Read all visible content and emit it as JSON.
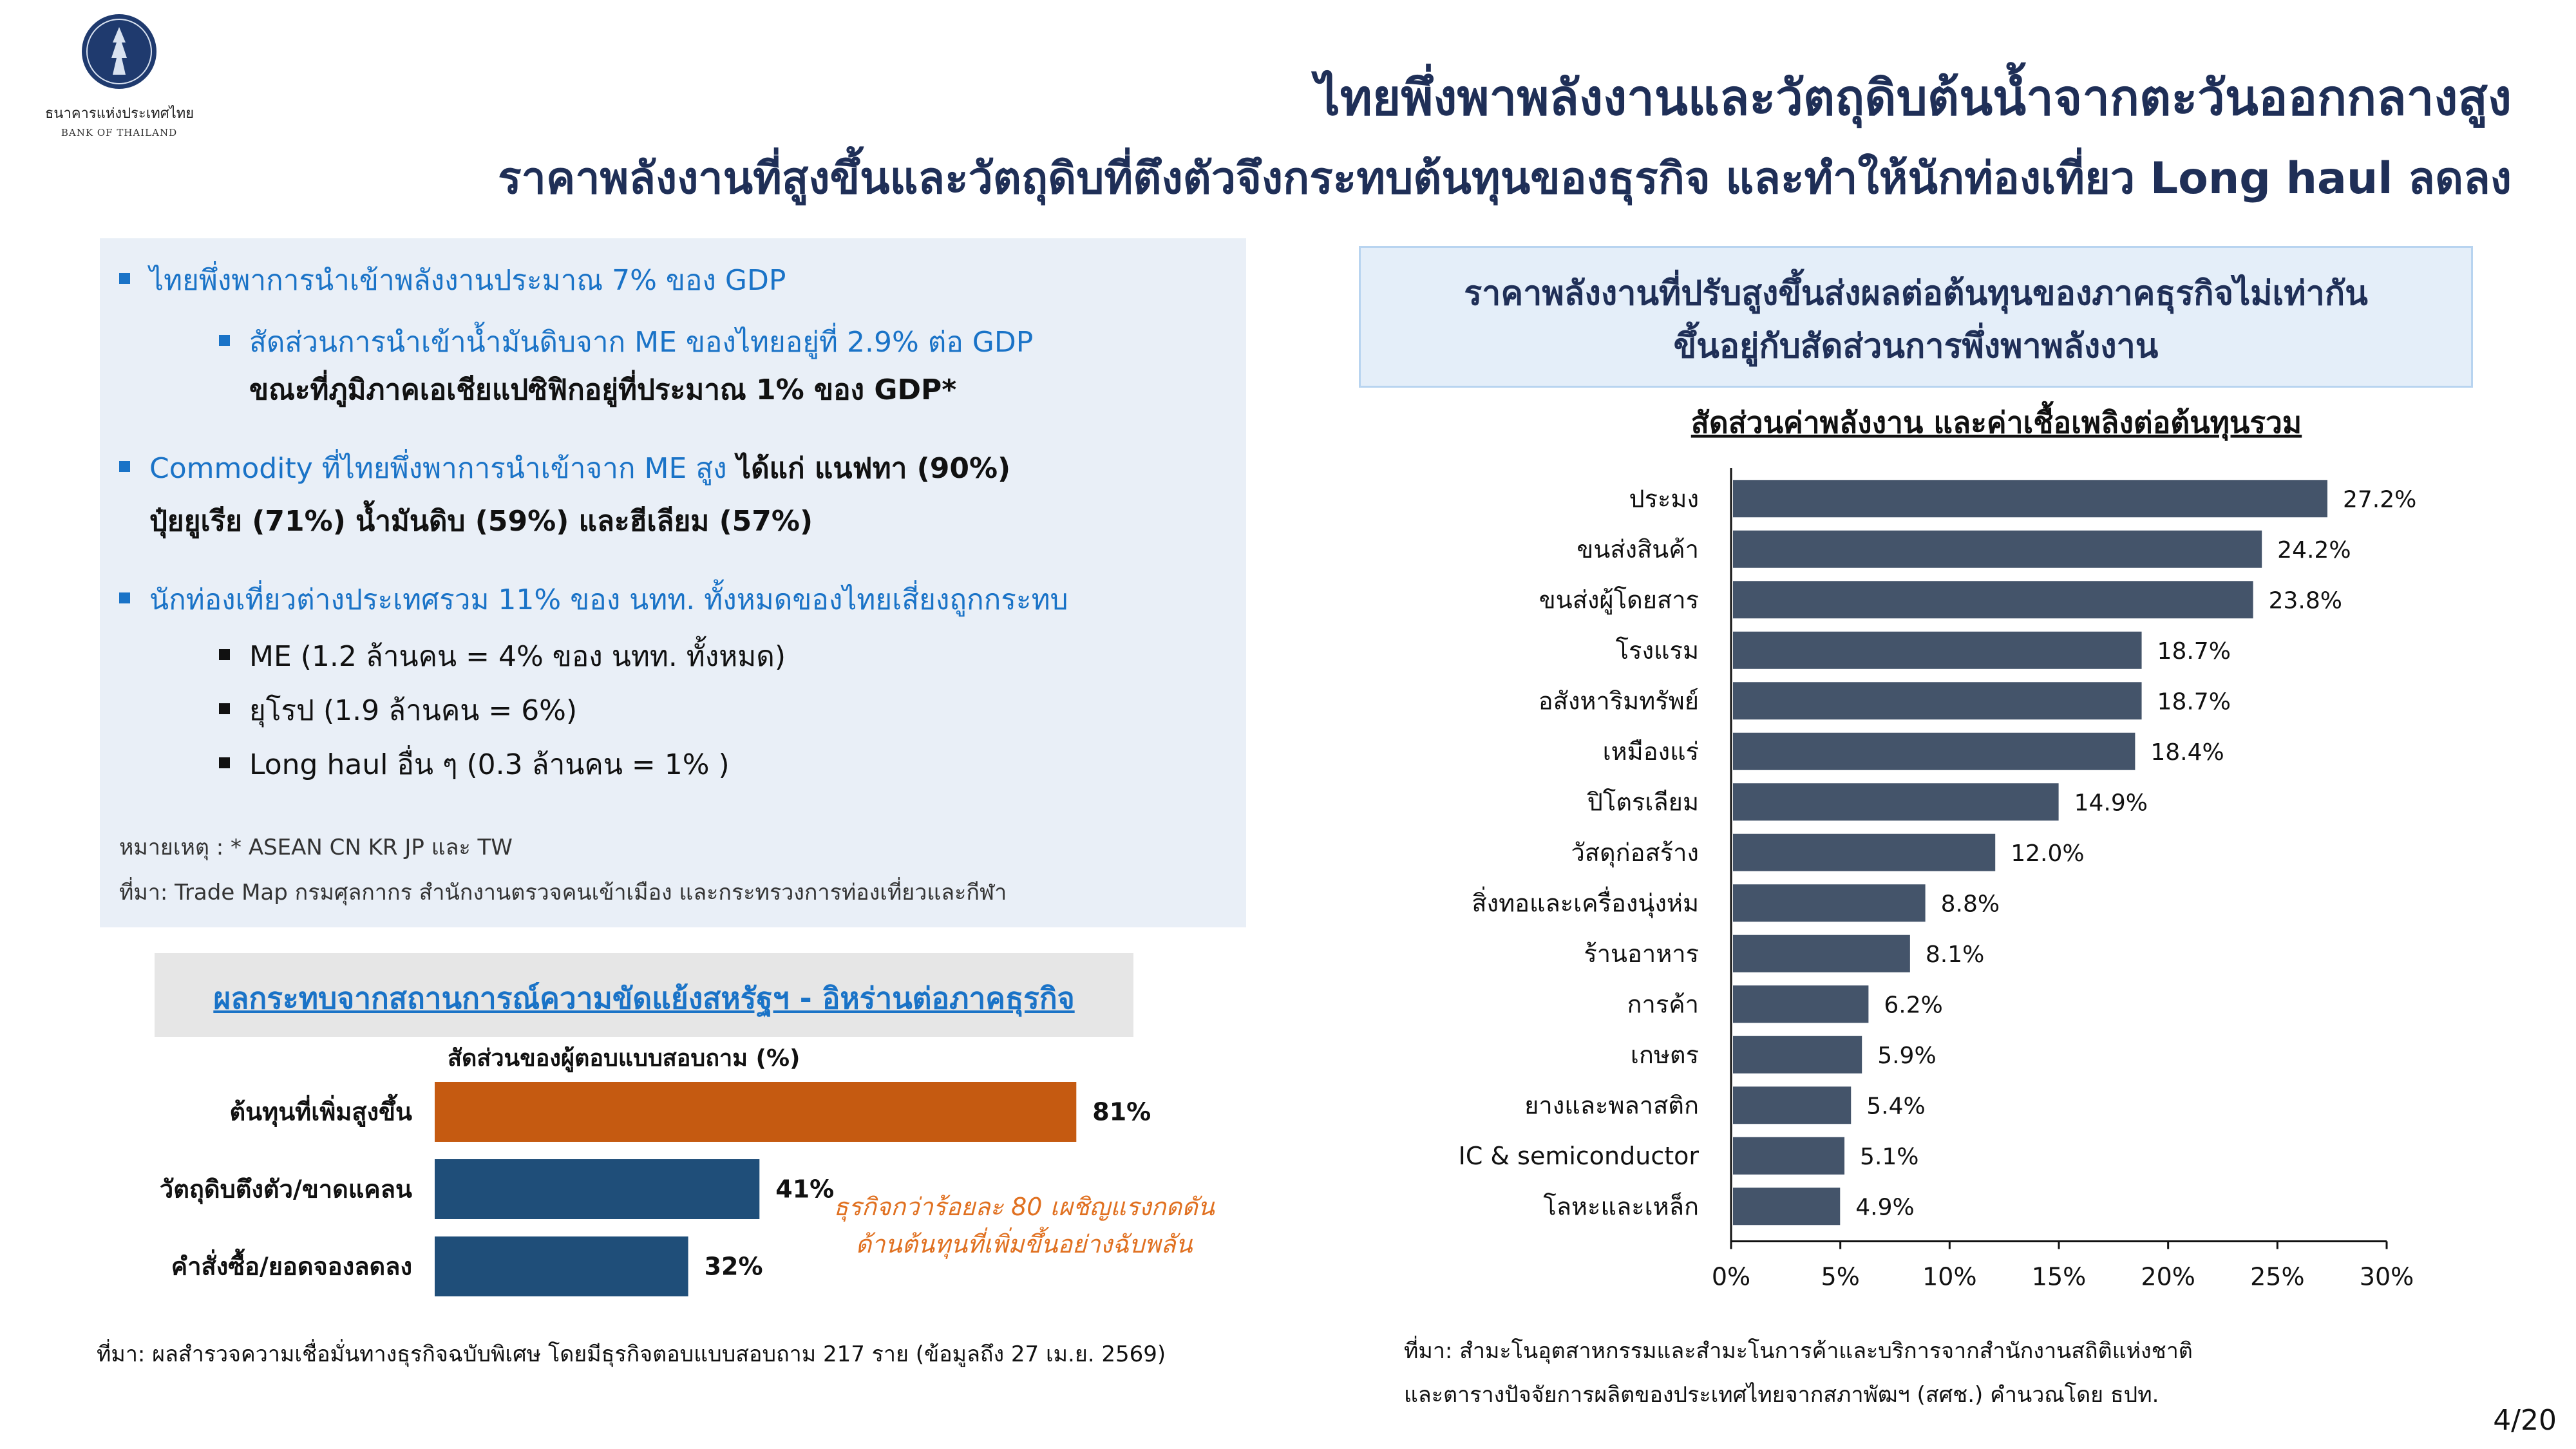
{
  "header": {
    "logo_name_th": "ธนาคารแห่งประเทศไทย",
    "logo_name_en": "BANK OF THAILAND",
    "title_line1": "ไทยพึ่งพาพลังงานและวัตถุดิบต้นน้ำจากตะวันออกกลางสูง",
    "title_line2": "ราคาพลังงานที่สูงขึ้นและวัตถุดิบที่ตึงตัวจึงกระทบต้นทุนของธุรกิจ และทำให้นักท่องเที่ยว Long haul ลดลง"
  },
  "info": {
    "b1": "ไทยพึ่งพาการนำเข้าพลังงานประมาณ 7% ของ GDP",
    "b1_sub": "สัดส่วนการนำเข้าน้ำมันดิบจาก ME ของไทยอยู่ที่ 2.9% ต่อ GDP",
    "b1_sub2": "ขณะที่ภูมิภาคเอเชียแปซิฟิกอยู่ที่ประมาณ 1% ของ GDP*",
    "b2_blue": "Commodity ที่ไทยพึ่งพาการนำเข้าจาก ME สูง",
    "b2_rest": " ได้แก่ แนฟทา (90%)",
    "b2_line2": "ปุ๋ยยูเรีย (71%) น้ำมันดิบ (59%) และฮีเลียม (57%)",
    "b3": "นักท่องเที่ยวต่างประเทศรวม 11% ของ นทท. ทั้งหมดของไทยเสี่ยงถูกกระทบ",
    "b3_items": [
      "ME (1.2 ล้านคน = 4% ของ นทท. ทั้งหมด)",
      "ยุโรป (1.9 ล้านคน = 6%)",
      "Long haul อื่น ๆ (0.3 ล้านคน = 1% )"
    ],
    "note1": "หมายเหตุ : * ASEAN CN KR JP และ TW",
    "note2": "ที่มา: Trade Map กรมศุลกากร สำนักงานตรวจคนเข้าเมือง และกระทรวงการท่องเที่ยวและกีฬา"
  },
  "survey": {
    "header": "ผลกระทบจากสถานการณ์ความขัดแย้งสหรัฐฯ - อิหร่านต่อภาคธุรกิจ",
    "callout_line1": "ธุรกิจกว่าร้อยละ 80 เผชิญแรงกดดัน",
    "callout_line2": "ด้านต้นทุนที่เพิ่มขึ้นอย่างฉับพลัน",
    "source": "ที่มา: ผลสำรวจความเชื่อมั่นทางธุรกิจฉบับพิเศษ โดยมีธุรกิจตอบแบบสอบถาม 217  ราย (ข้อมูลถึง 27 เม.ย. 2569)"
  },
  "right": {
    "box_line1": "ราคาพลังงานที่ปรับสูงขึ้นส่งผลต่อต้นทุนของภาคธุรกิจไม่เท่ากัน",
    "box_line2": "ขึ้นอยู่กับสัดส่วนการพึ่งพาพลังงาน",
    "source_line1": "ที่มา: สำมะโนอุตสาหกรรมและสำมะโนการค้าและบริการจากสำนักงานสถิติแห่งชาติ",
    "source_line2": "และตารางปัจจัยการผลิตของประเทศไทยจากสภาพัฒฯ (สศช.) คำนวณโดย ธปท."
  },
  "page": "4/20",
  "colors": {
    "title": "#1f2f57",
    "accent_blue": "#1a73c7",
    "survey_highlight": "#c55a11",
    "survey_bar": "#1f4e79",
    "energy_bar": "#44546a",
    "callout": "#e07020"
  },
  "chart_data": [
    {
      "type": "bar",
      "orientation": "horizontal",
      "title": "",
      "xlabel": "สัดส่วนของผู้ตอบแบบสอบถาม (%)",
      "categories": [
        "ต้นทุนที่เพิ่มสูงขึ้น",
        "วัตถุดิบตึงตัว/ขาดแคลน",
        "คำสั่งซื้อ/ยอดจองลดลง"
      ],
      "values": [
        81,
        41,
        32
      ],
      "labels": [
        "81%",
        "41%",
        "32%"
      ],
      "xlim": [
        0,
        100
      ],
      "grid": false
    },
    {
      "type": "bar",
      "orientation": "horizontal",
      "title": "สัดส่วนค่าพลังงาน และค่าเชื้อเพลิงต่อต้นทุนรวม",
      "categories": [
        "ประมง",
        "ขนส่งสินค้า",
        "ขนส่งผู้โดยสาร",
        "โรงแรม",
        "อสังหาริมทรัพย์",
        "เหมืองแร่",
        "ปิโตรเลียม",
        "วัสดุก่อสร้าง",
        "สิ่งทอและเครื่องนุ่งห่ม",
        "ร้านอาหาร",
        "การค้า",
        "เกษตร",
        "ยางและพลาสติก",
        "IC & semiconductor",
        "โลหะและเหล็ก"
      ],
      "values": [
        27.2,
        24.2,
        23.8,
        18.7,
        18.7,
        18.4,
        14.9,
        12.0,
        8.8,
        8.1,
        6.2,
        5.9,
        5.4,
        5.1,
        4.9
      ],
      "labels": [
        "27.2%",
        "24.2%",
        "23.8%",
        "18.7%",
        "18.7%",
        "18.4%",
        "14.9%",
        "12.0%",
        "8.8%",
        "8.1%",
        "6.2%",
        "5.9%",
        "5.4%",
        "5.1%",
        "4.9%"
      ],
      "xlim": [
        0,
        30
      ],
      "xticks": [
        "0%",
        "5%",
        "10%",
        "15%",
        "20%",
        "25%",
        "30%"
      ],
      "grid": false
    }
  ]
}
